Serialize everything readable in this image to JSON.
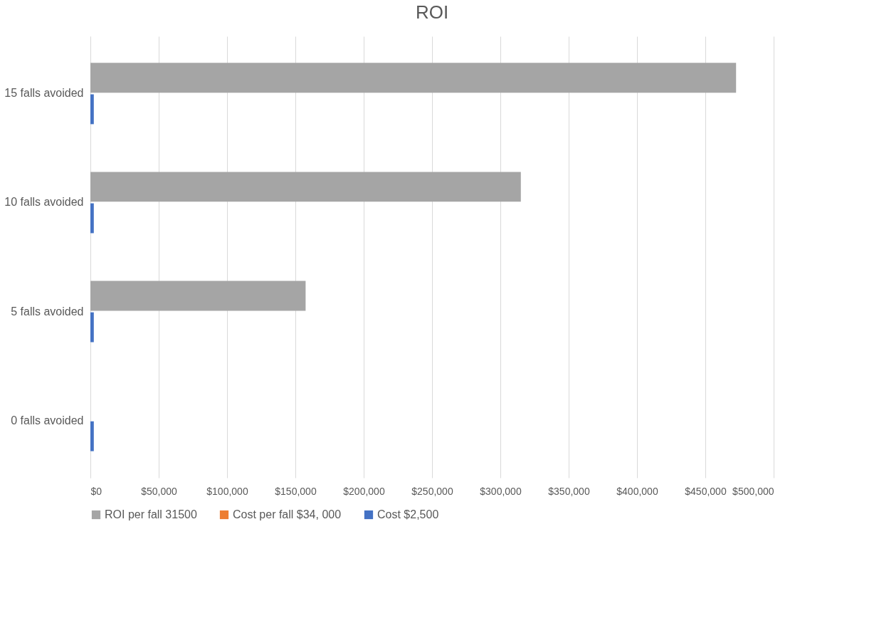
{
  "chart_data": {
    "type": "bar",
    "title": "ROI",
    "orientation": "horizontal",
    "categories": [
      "15 falls avoided",
      "10 falls avoided",
      "5 falls avoided",
      "0 falls avoided"
    ],
    "series": [
      {
        "name": "ROI per fall 31500",
        "color": "#a5a5a5",
        "values": [
          472500,
          315000,
          157500,
          0
        ]
      },
      {
        "name": "Cost per fall $34, 000",
        "color": "#ed7d31",
        "values": [
          null,
          null,
          null,
          null
        ]
      },
      {
        "name": "Cost  $2,500",
        "color": "#4472c4",
        "values": [
          2500,
          2500,
          2500,
          2500
        ]
      }
    ],
    "xlim": [
      0,
      500000
    ],
    "xticks": [
      {
        "value": 0,
        "label": "$0"
      },
      {
        "value": 50000,
        "label": "$50,000"
      },
      {
        "value": 100000,
        "label": "$100,000"
      },
      {
        "value": 150000,
        "label": "$150,000"
      },
      {
        "value": 200000,
        "label": "$200,000"
      },
      {
        "value": 250000,
        "label": "$250,000"
      },
      {
        "value": 300000,
        "label": "$300,000"
      },
      {
        "value": 350000,
        "label": "$350,000"
      },
      {
        "value": 400000,
        "label": "$400,000"
      },
      {
        "value": 450000,
        "label": "$450,000"
      },
      {
        "value": 500000,
        "label": "$500,000"
      }
    ],
    "grid": "x",
    "legend": "bottom"
  }
}
